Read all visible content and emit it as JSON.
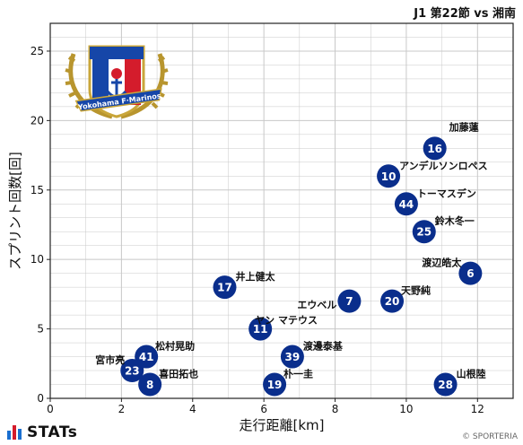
{
  "match_title": "J1 第22節 vs 湘南",
  "brand": "STATs",
  "copyright": "© SPORTERIA",
  "crest_label": "Yokohama F·Marinos",
  "colors": {
    "marker": "#0a2e8c",
    "marker_text": "#ffffff",
    "grid": "#c8c8c8",
    "brand_bar_1": "#1a6fd0",
    "brand_bar_2": "#d41c2c",
    "brand_bar_3": "#1a6fd0"
  },
  "chart_data": {
    "type": "scatter",
    "xlabel": "走行距離[km]",
    "ylabel": "スプリント回数[回]",
    "xlim": [
      0,
      13
    ],
    "ylim": [
      0,
      27
    ],
    "xticks": [
      0,
      2,
      4,
      6,
      8,
      10,
      12
    ],
    "yticks": [
      0,
      5,
      10,
      15,
      20,
      25
    ],
    "grid": true,
    "points": [
      {
        "number": "16",
        "name": "加藤蓮",
        "x": 10.8,
        "y": 18
      },
      {
        "number": "10",
        "name": "アンデルソンロペス",
        "x": 9.5,
        "y": 16
      },
      {
        "number": "44",
        "name": "トーマスデン",
        "x": 10.0,
        "y": 14
      },
      {
        "number": "25",
        "name": "鈴木冬一",
        "x": 10.5,
        "y": 12
      },
      {
        "number": "6",
        "name": "渡辺皓太",
        "x": 11.8,
        "y": 9
      },
      {
        "number": "20",
        "name": "天野純",
        "x": 9.6,
        "y": 7
      },
      {
        "number": "7",
        "name": "エウベル",
        "x": 8.4,
        "y": 7
      },
      {
        "number": "17",
        "name": "井上健太",
        "x": 4.9,
        "y": 8
      },
      {
        "number": "11",
        "name": "ヤン マテウス",
        "x": 5.9,
        "y": 5
      },
      {
        "number": "41",
        "name": "松村晃助",
        "x": 2.7,
        "y": 3
      },
      {
        "number": "23",
        "name": "宮市亮",
        "x": 2.3,
        "y": 2
      },
      {
        "number": "8",
        "name": "喜田拓也",
        "x": 2.8,
        "y": 1
      },
      {
        "number": "39",
        "name": "渡邊泰基",
        "x": 6.8,
        "y": 3
      },
      {
        "number": "19",
        "name": "朴一圭",
        "x": 6.3,
        "y": 1
      },
      {
        "number": "28",
        "name": "山根陸",
        "x": 11.1,
        "y": 1
      }
    ]
  }
}
